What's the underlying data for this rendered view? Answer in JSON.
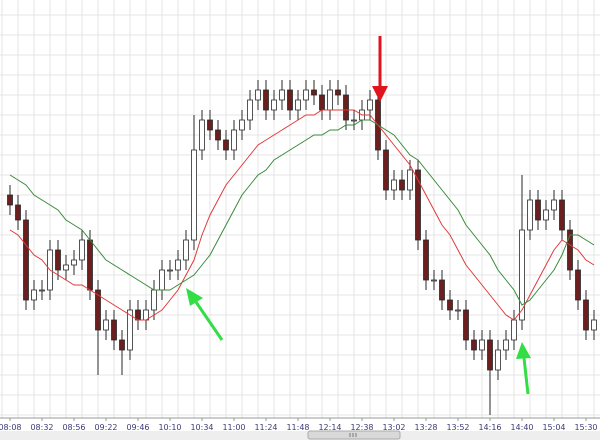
{
  "chart_data": {
    "type": "candlestick",
    "categories": [
      "08:08",
      null,
      null,
      null,
      "08:32",
      null,
      null,
      null,
      "08:56",
      null,
      null,
      null,
      "09:22",
      null,
      null,
      null,
      "09:46",
      null,
      null,
      null,
      "10:10",
      null,
      null,
      null,
      "10:34",
      null,
      null,
      null,
      "11:00",
      null,
      null,
      null,
      "11:24",
      null,
      null,
      null,
      "11:48",
      null,
      null,
      null,
      "12:14",
      null,
      null,
      null,
      "12:38",
      null,
      null,
      null,
      "13:02",
      null,
      null,
      null,
      "13:28",
      null,
      null,
      null,
      "13:52",
      null,
      null,
      null,
      "14:16",
      null,
      null,
      null,
      "14:40",
      null,
      null,
      null,
      "15:04",
      null,
      null,
      null,
      "15:30",
      null
    ],
    "open": [
      44,
      42,
      39,
      23,
      25,
      25,
      33,
      29,
      30,
      31,
      35,
      25,
      17,
      19,
      15,
      13,
      21,
      19,
      21,
      25,
      29,
      29,
      31,
      35,
      53,
      59,
      57,
      55,
      53,
      57,
      59,
      63,
      65,
      61,
      63,
      65,
      61,
      63,
      65,
      64,
      61,
      65,
      64,
      59,
      59,
      61,
      63,
      53,
      45,
      47,
      45,
      49,
      35,
      27,
      27,
      23,
      21,
      21,
      15,
      13,
      15,
      9,
      13,
      15,
      19,
      37,
      43,
      39,
      41,
      43,
      37,
      29,
      23,
      17
    ],
    "high": [
      46,
      44,
      41,
      27,
      27,
      35,
      35,
      32,
      33,
      37,
      37,
      27,
      21,
      21,
      17,
      23,
      23,
      23,
      27,
      31,
      31,
      33,
      37,
      60,
      61,
      61,
      59,
      57,
      59,
      61,
      65,
      67,
      67,
      65,
      67,
      67,
      65,
      67,
      67,
      66,
      67,
      67,
      66,
      61,
      63,
      65,
      65,
      55,
      49,
      49,
      51,
      51,
      37,
      29,
      29,
      25,
      23,
      23,
      17,
      17,
      17,
      15,
      17,
      21,
      48,
      45,
      45,
      43,
      45,
      45,
      39,
      31,
      25,
      21
    ],
    "low": [
      40,
      37,
      21,
      21,
      23,
      23,
      27,
      27,
      28,
      29,
      23,
      8,
      15,
      13,
      8,
      11,
      17,
      17,
      19,
      23,
      27,
      27,
      29,
      33,
      51,
      55,
      53,
      51,
      51,
      55,
      57,
      61,
      59,
      59,
      61,
      59,
      59,
      61,
      62,
      59,
      59,
      62,
      57,
      57,
      57,
      59,
      51,
      43,
      43,
      43,
      43,
      33,
      25,
      25,
      21,
      19,
      19,
      13,
      11,
      11,
      0,
      7,
      11,
      13,
      17,
      35,
      37,
      37,
      39,
      35,
      27,
      21,
      15,
      15
    ],
    "close": [
      42,
      39,
      23,
      25,
      25,
      33,
      29,
      30,
      31,
      35,
      25,
      17,
      19,
      15,
      13,
      21,
      19,
      21,
      25,
      29,
      29,
      31,
      35,
      53,
      59,
      57,
      55,
      53,
      57,
      59,
      63,
      65,
      61,
      63,
      65,
      61,
      63,
      65,
      64,
      61,
      65,
      64,
      59,
      59,
      61,
      63,
      53,
      45,
      47,
      45,
      49,
      35,
      27,
      27,
      23,
      21,
      21,
      15,
      13,
      15,
      9,
      13,
      15,
      19,
      37,
      43,
      39,
      41,
      43,
      37,
      29,
      23,
      17,
      19
    ],
    "up_color": "#ffffff",
    "down_color": "#6b1f1f",
    "wick_color": "#2a2a2a",
    "series": [
      {
        "color": "#e03a3a",
        "values": [
          37,
          36,
          34,
          32,
          31,
          29,
          28,
          27,
          26,
          26,
          25,
          24,
          23,
          22,
          21,
          20,
          19,
          19,
          20,
          21,
          23,
          25,
          28,
          31,
          36,
          40,
          43,
          46,
          48,
          50,
          52,
          54,
          55,
          56,
          57,
          58,
          59,
          60,
          60,
          61,
          61,
          61,
          61,
          61,
          60,
          60,
          58,
          56,
          54,
          52,
          50,
          47,
          44,
          41,
          38,
          36,
          33,
          30,
          28,
          26,
          24,
          22,
          20,
          19,
          21,
          24,
          27,
          30,
          33,
          35,
          34,
          33,
          31,
          30
        ]
      },
      {
        "color": "#3a8a3a",
        "values": [
          48,
          47,
          46,
          44,
          43,
          42,
          41,
          39,
          38,
          37,
          35,
          33,
          31,
          30,
          29,
          28,
          27,
          26,
          25,
          25,
          25,
          26,
          27,
          28,
          30,
          32,
          35,
          38,
          41,
          44,
          46,
          48,
          49,
          51,
          52,
          53,
          54,
          55,
          56,
          56,
          57,
          57,
          58,
          58,
          59,
          59,
          58,
          57,
          56,
          54,
          52,
          51,
          49,
          47,
          45,
          43,
          41,
          38,
          36,
          34,
          32,
          29,
          27,
          25,
          22,
          23,
          25,
          27,
          29,
          32,
          36,
          36,
          35,
          34
        ]
      }
    ],
    "ylim": [
      0,
      83
    ],
    "yticks": [
      0,
      4,
      8,
      12,
      16,
      20,
      24,
      28,
      32,
      36,
      40,
      44,
      48,
      52,
      56,
      60,
      64,
      68,
      72,
      76,
      80
    ],
    "grid": true
  }
}
